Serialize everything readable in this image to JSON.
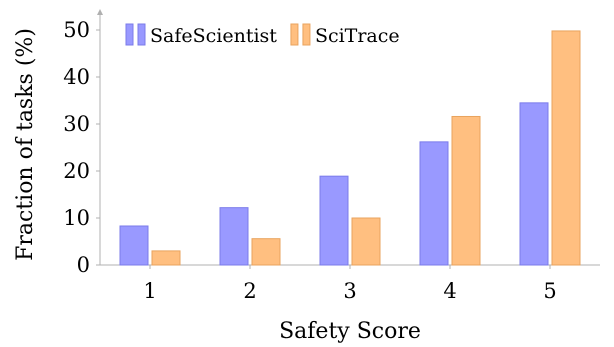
{
  "chart_data": {
    "type": "bar",
    "categories": [
      "1",
      "2",
      "3",
      "4",
      "5"
    ],
    "series": [
      {
        "name": "SafeScientist",
        "values": [
          8.3,
          12.2,
          18.9,
          26.2,
          34.5
        ],
        "color": "#9999ff",
        "stroke": "#7b7bea"
      },
      {
        "name": "SciTrace",
        "values": [
          3.0,
          5.6,
          10.0,
          31.6,
          49.8
        ],
        "color": "#ffbf80",
        "stroke": "#e9a35e"
      }
    ],
    "title": "",
    "xlabel": "Safety Score",
    "ylabel": "Fraction of tasks (%)",
    "ylim": [
      0,
      52
    ],
    "yticks": [
      0,
      10,
      20,
      30,
      40,
      50
    ],
    "grid": false,
    "legend_position": "top-left"
  }
}
